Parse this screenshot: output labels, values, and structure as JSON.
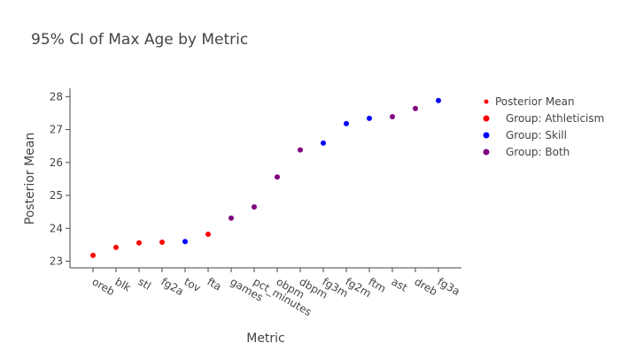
{
  "chart_data": {
    "type": "scatter",
    "title": "95% CI of Max Age by Metric",
    "xlabel": "Metric",
    "ylabel": "Posterior Mean",
    "categories": [
      "oreb",
      "blk",
      "stl",
      "fg2a",
      "tov",
      "fta",
      "games",
      "pct_minutes",
      "obpm",
      "dbpm",
      "fg3m",
      "fg2m",
      "ftm",
      "ast",
      "dreb",
      "fg3a"
    ],
    "ylim": [
      22.8,
      28.25
    ],
    "yticks": [
      23,
      24,
      25,
      26,
      27,
      28
    ],
    "grid": false,
    "legend_position": "right",
    "legend": [
      {
        "label": "Posterior Mean",
        "color": "#ff0000"
      },
      {
        "label": "Group: Athleticism",
        "color": "#ff0000"
      },
      {
        "label": "Group: Skill",
        "color": "#0000ff"
      },
      {
        "label": "Group: Both",
        "color": "#800080"
      }
    ],
    "points": [
      {
        "x": "oreb",
        "y": 23.18,
        "group": "Athleticism",
        "color": "#ff0000"
      },
      {
        "x": "blk",
        "y": 23.42,
        "group": "Athleticism",
        "color": "#ff0000"
      },
      {
        "x": "stl",
        "y": 23.56,
        "group": "Athleticism",
        "color": "#ff0000"
      },
      {
        "x": "fg2a",
        "y": 23.58,
        "group": "Athleticism",
        "color": "#ff0000"
      },
      {
        "x": "tov",
        "y": 23.6,
        "group": "Skill",
        "color": "#0000ff"
      },
      {
        "x": "fta",
        "y": 23.82,
        "group": "Athleticism",
        "color": "#ff0000"
      },
      {
        "x": "games",
        "y": 24.31,
        "group": "Both",
        "color": "#800080"
      },
      {
        "x": "pct_minutes",
        "y": 24.65,
        "group": "Both",
        "color": "#800080"
      },
      {
        "x": "obpm",
        "y": 25.56,
        "group": "Both",
        "color": "#800080"
      },
      {
        "x": "dbpm",
        "y": 26.38,
        "group": "Both",
        "color": "#800080"
      },
      {
        "x": "fg3m",
        "y": 26.59,
        "group": "Skill",
        "color": "#0000ff"
      },
      {
        "x": "fg2m",
        "y": 27.18,
        "group": "Skill",
        "color": "#0000ff"
      },
      {
        "x": "ftm",
        "y": 27.34,
        "group": "Skill",
        "color": "#0000ff"
      },
      {
        "x": "ast",
        "y": 27.39,
        "group": "Both",
        "color": "#800080"
      },
      {
        "x": "dreb",
        "y": 27.64,
        "group": "Both",
        "color": "#800080"
      },
      {
        "x": "fg3a",
        "y": 27.88,
        "group": "Skill",
        "color": "#0000ff"
      }
    ]
  }
}
